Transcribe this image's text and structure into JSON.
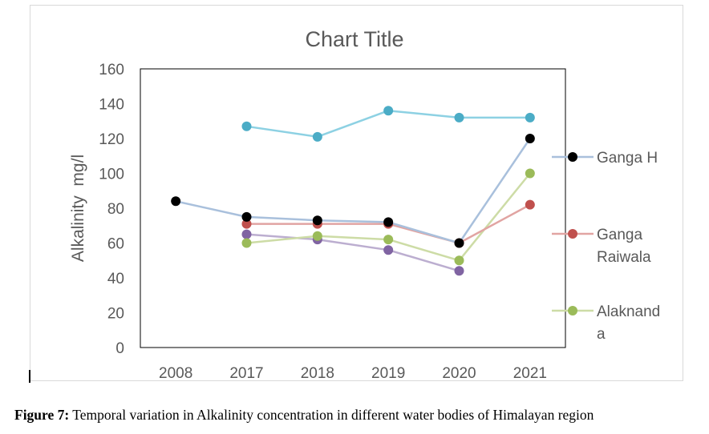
{
  "chart_data": {
    "type": "line",
    "title": "Chart Title",
    "xlabel": "",
    "ylabel": "Alkalinity  mg/l",
    "categories": [
      "2008",
      "2017",
      "2018",
      "2019",
      "2020",
      "2021"
    ],
    "ylim": [
      0,
      160
    ],
    "yticks": [
      0,
      20,
      40,
      60,
      80,
      100,
      120,
      140,
      160
    ],
    "grid": false,
    "legend_position": "right",
    "series": [
      {
        "name": "Ganga H",
        "line_color": "#a9c0dc",
        "marker_color": "#000000",
        "values": [
          84,
          75,
          73,
          72,
          60,
          120
        ]
      },
      {
        "name": "Ganga Raiwala",
        "line_color": "#e1a4a2",
        "marker_color": "#c0504d",
        "values": [
          null,
          71,
          71,
          71,
          60,
          82
        ]
      },
      {
        "name": "Alaknanda",
        "line_color": "#cddca6",
        "marker_color": "#9bbb59",
        "values": [
          null,
          60,
          64,
          62,
          50,
          100
        ]
      },
      {
        "name": "",
        "line_color": "#bcaed0",
        "marker_color": "#8064a2",
        "values": [
          null,
          65,
          62,
          56,
          44,
          null
        ]
      },
      {
        "name": "",
        "line_color": "#8dd1e3",
        "marker_color": "#4bacc6",
        "values": [
          null,
          127,
          121,
          136,
          132,
          132
        ]
      }
    ],
    "legend": [
      {
        "lines": [
          "Ganga H"
        ],
        "series_index": 0
      },
      {
        "lines": [
          "Ganga",
          "Raiwala"
        ],
        "series_index": 1
      },
      {
        "lines": [
          "Alaknand",
          "a"
        ],
        "series_index": 2
      }
    ]
  },
  "caption": {
    "label": "Figure 7:",
    "text": " Temporal variation in Alkalinity concentration in different water bodies of Himalayan region"
  }
}
